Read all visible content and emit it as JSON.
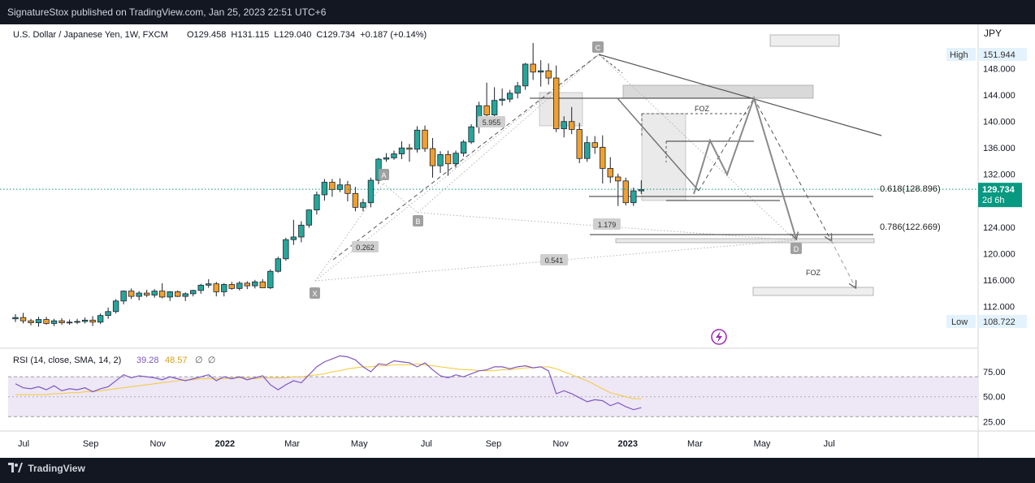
{
  "publisher_line": "SignatureStox published on TradingView.com, Jan 25, 2023 22:51 UTC+6",
  "footer_brand": "TradingView",
  "colors": {
    "up": "#26a69a",
    "down": "#f0a030",
    "rsi": "#7e57c2",
    "sma": "#f5c935",
    "trend": "#555555",
    "zone": "#d9d9d9",
    "price_tag": "#089981"
  },
  "icons": {
    "logo": "tradingview-logo-icon",
    "lightning": "lightning-icon"
  },
  "chart_data": {
    "type": "candlestick",
    "title": "U.S. Dollar / Japanese Yen, 1W, FXCM",
    "ohlc_label": "O129.458  H131.115  L129.040  C129.734  +0.187 (+0.14%)",
    "currency": "JPY",
    "price_ticks": [
      "148.000",
      "144.000",
      "140.000",
      "136.000",
      "132.000",
      "128.000",
      "124.000",
      "120.000",
      "116.000",
      "112.000"
    ],
    "ylim": [
      106.5,
      153.5
    ],
    "x_ticks": [
      "Jul",
      "Sep",
      "Nov",
      "2022",
      "Mar",
      "May",
      "Jul",
      "Sep",
      "Nov",
      "2023",
      "Mar",
      "May",
      "Jul"
    ],
    "high_label": "High",
    "high_value": "151.944",
    "low_label": "Low",
    "low_value": "108.722",
    "last_price": "129.734",
    "countdown": "2d 6h",
    "candles": [
      [
        110.1,
        110.8,
        109.6,
        110.3
      ],
      [
        110.3,
        111.0,
        109.4,
        109.8
      ],
      [
        109.8,
        110.1,
        109.1,
        109.5
      ],
      [
        109.5,
        110.4,
        108.9,
        110.0
      ],
      [
        110.0,
        110.4,
        109.2,
        109.4
      ],
      [
        109.4,
        110.1,
        109.0,
        109.8
      ],
      [
        109.8,
        110.2,
        109.2,
        109.5
      ],
      [
        109.5,
        110.0,
        109.2,
        109.6
      ],
      [
        109.6,
        110.1,
        109.3,
        109.7
      ],
      [
        109.7,
        110.3,
        109.4,
        109.9
      ],
      [
        109.9,
        110.5,
        109.0,
        109.6
      ],
      [
        109.6,
        110.9,
        109.3,
        110.6
      ],
      [
        110.6,
        111.8,
        110.1,
        111.2
      ],
      [
        111.2,
        113.1,
        110.9,
        112.8
      ],
      [
        112.8,
        114.4,
        112.3,
        114.3
      ],
      [
        114.3,
        114.7,
        113.1,
        113.5
      ],
      [
        113.5,
        114.3,
        112.9,
        114.0
      ],
      [
        114.0,
        114.5,
        113.4,
        113.7
      ],
      [
        113.7,
        114.6,
        113.3,
        114.3
      ],
      [
        114.3,
        115.5,
        113.2,
        113.4
      ],
      [
        113.4,
        114.3,
        112.8,
        114.2
      ],
      [
        114.2,
        114.4,
        113.4,
        113.5
      ],
      [
        113.5,
        114.1,
        112.8,
        113.9
      ],
      [
        113.9,
        114.5,
        113.5,
        114.4
      ],
      [
        114.4,
        115.4,
        113.9,
        115.2
      ],
      [
        115.2,
        116.1,
        114.8,
        115.4
      ],
      [
        115.4,
        115.7,
        113.5,
        114.2
      ],
      [
        114.2,
        115.5,
        113.5,
        115.3
      ],
      [
        115.3,
        115.7,
        114.5,
        114.7
      ],
      [
        114.7,
        115.8,
        114.4,
        115.5
      ],
      [
        115.5,
        115.8,
        114.6,
        115.1
      ],
      [
        115.1,
        116.0,
        114.7,
        115.7
      ],
      [
        115.7,
        116.1,
        114.8,
        114.8
      ],
      [
        114.8,
        117.6,
        114.6,
        117.3
      ],
      [
        117.3,
        119.5,
        117.1,
        119.2
      ],
      [
        119.2,
        122.4,
        118.9,
        122.1
      ],
      [
        122.1,
        125.1,
        121.3,
        122.5
      ],
      [
        122.5,
        124.9,
        121.7,
        124.3
      ],
      [
        124.3,
        126.7,
        123.9,
        126.6
      ],
      [
        126.6,
        129.4,
        125.9,
        128.9
      ],
      [
        128.9,
        131.3,
        128.0,
        130.8
      ],
      [
        130.8,
        131.3,
        128.6,
        129.7
      ],
      [
        129.7,
        131.4,
        129.3,
        130.4
      ],
      [
        130.4,
        131.0,
        127.9,
        129.1
      ],
      [
        129.1,
        130.1,
        126.4,
        127.0
      ],
      [
        127.0,
        128.3,
        126.4,
        127.7
      ],
      [
        127.7,
        131.5,
        127.0,
        131.1
      ],
      [
        131.1,
        134.5,
        130.5,
        134.3
      ],
      [
        134.3,
        135.2,
        133.9,
        134.5
      ],
      [
        134.5,
        135.6,
        134.2,
        135.1
      ],
      [
        135.1,
        137.0,
        134.3,
        136.0
      ],
      [
        136.0,
        136.6,
        133.9,
        135.8
      ],
      [
        135.8,
        139.3,
        135.3,
        138.7
      ],
      [
        138.7,
        139.4,
        135.4,
        135.9
      ],
      [
        135.9,
        137.5,
        131.5,
        133.3
      ],
      [
        133.3,
        135.5,
        132.2,
        135.0
      ],
      [
        135.0,
        135.6,
        131.8,
        133.6
      ],
      [
        133.6,
        135.6,
        133.0,
        135.2
      ],
      [
        135.2,
        137.2,
        134.7,
        136.9
      ],
      [
        136.9,
        139.6,
        136.6,
        139.2
      ],
      [
        139.2,
        143.0,
        138.2,
        142.4
      ],
      [
        142.4,
        145.9,
        139.8,
        141.0
      ],
      [
        141.0,
        145.2,
        140.3,
        143.2
      ],
      [
        143.2,
        145.0,
        142.4,
        143.4
      ],
      [
        143.4,
        144.8,
        142.9,
        144.3
      ],
      [
        144.3,
        146.0,
        143.5,
        145.4
      ],
      [
        145.4,
        148.9,
        144.8,
        148.7
      ],
      [
        148.7,
        151.9,
        146.3,
        147.5
      ],
      [
        147.5,
        149.3,
        145.3,
        147.7
      ],
      [
        147.7,
        148.8,
        145.6,
        146.6
      ],
      [
        146.6,
        148.5,
        138.4,
        138.9
      ],
      [
        138.9,
        140.8,
        137.6,
        140.0
      ],
      [
        140.0,
        142.2,
        138.1,
        138.8
      ],
      [
        138.8,
        139.8,
        133.7,
        134.4
      ],
      [
        134.4,
        137.8,
        133.9,
        136.8
      ],
      [
        136.8,
        137.8,
        135.1,
        136.1
      ],
      [
        136.1,
        137.9,
        130.6,
        132.9
      ],
      [
        132.9,
        134.6,
        130.7,
        131.6
      ],
      [
        131.6,
        132.1,
        127.2,
        131.0
      ],
      [
        131.0,
        131.5,
        127.3,
        127.7
      ],
      [
        127.7,
        130.0,
        127.2,
        129.5
      ],
      [
        129.5,
        131.1,
        129.0,
        129.7
      ]
    ],
    "rsi": {
      "label": "RSI (14, close, SMA, 14, 2)",
      "value": "39.28",
      "sma_value": "48.57",
      "extra": "∅  ∅",
      "ticks": [
        "75.00",
        "50.00",
        "25.00"
      ],
      "upper_band": 70,
      "middle_band": 50,
      "lower_band": 30,
      "ylim": [
        18,
        97
      ],
      "values": [
        63,
        59,
        58,
        60,
        57,
        61,
        56,
        58,
        57,
        59,
        55,
        58,
        60,
        66,
        72,
        69,
        71,
        70,
        69,
        67,
        70,
        68,
        66,
        68,
        70,
        72,
        66,
        70,
        68,
        70,
        67,
        69,
        71,
        62,
        57,
        62,
        66,
        64,
        72,
        80,
        85,
        88,
        91,
        90,
        87,
        80,
        75,
        83,
        82,
        86,
        85,
        84,
        80,
        84,
        77,
        71,
        69,
        72,
        70,
        73,
        76,
        77,
        80,
        80,
        78,
        80,
        81,
        79,
        80,
        76,
        53,
        56,
        53,
        49,
        45,
        47,
        46,
        41,
        44,
        40,
        37,
        39
      ],
      "sma": [
        52,
        52,
        52,
        52,
        52,
        53,
        53,
        54,
        54,
        55,
        55,
        56,
        57,
        58,
        59,
        60,
        61,
        62,
        63,
        64,
        65,
        66,
        67,
        67,
        68,
        68,
        68,
        68,
        69,
        69,
        69,
        68,
        69,
        69,
        69,
        69,
        70,
        70,
        71,
        72,
        73,
        75,
        76,
        78,
        79,
        80,
        80,
        81,
        81,
        82,
        82,
        82,
        83,
        82,
        81,
        80,
        79,
        78,
        77,
        77,
        76,
        76,
        76,
        77,
        77,
        78,
        79,
        79,
        80,
        80,
        78,
        75,
        72,
        69,
        66,
        62,
        58,
        54,
        52,
        50,
        48,
        48
      ]
    },
    "labels": {
      "point_x": "X",
      "point_a": "A",
      "point_b": "B",
      "point_c": "C",
      "point_d": "D",
      "ratio_xa_1": "0.262",
      "ratio_xa_2": "5.955",
      "ratio_bc": "1.179",
      "ratio_xd": "0.541",
      "fib_618": "0.618(128.896)",
      "fib_786": "0.786(122.669)",
      "foz_1": "FOZ",
      "foz_2": "FOZ"
    }
  }
}
